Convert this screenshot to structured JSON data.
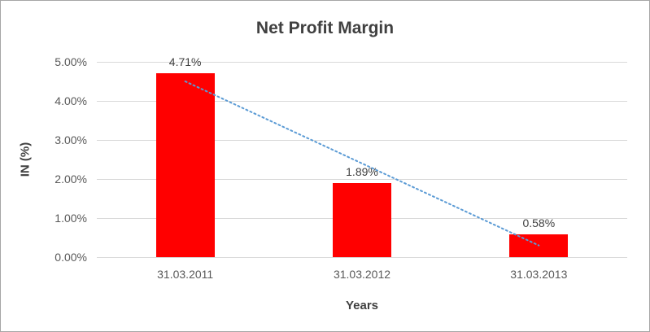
{
  "chart_data": {
    "type": "bar",
    "title": "Net Profit Margin",
    "xlabel": "Years",
    "ylabel": "IN (%)",
    "categories": [
      "31.03.2011",
      "31.03.2012",
      "31.03.2013"
    ],
    "values": [
      4.71,
      1.89,
      0.58
    ],
    "data_labels": [
      "4.71%",
      "1.89%",
      "0.58%"
    ],
    "ylim": [
      0,
      5
    ],
    "yticks": [
      {
        "value": 0,
        "label": "0.00%"
      },
      {
        "value": 1,
        "label": "1.00%"
      },
      {
        "value": 2,
        "label": "2.00%"
      },
      {
        "value": 3,
        "label": "3.00%"
      },
      {
        "value": 4,
        "label": "4.00%"
      },
      {
        "value": 5,
        "label": "5.00%"
      }
    ],
    "grid": true,
    "legend": "none",
    "bar_color": "#ff0000",
    "trendline": {
      "style": "dotted",
      "color": "#5b9bd5",
      "start_value": 4.5,
      "end_value": 0.3
    }
  }
}
